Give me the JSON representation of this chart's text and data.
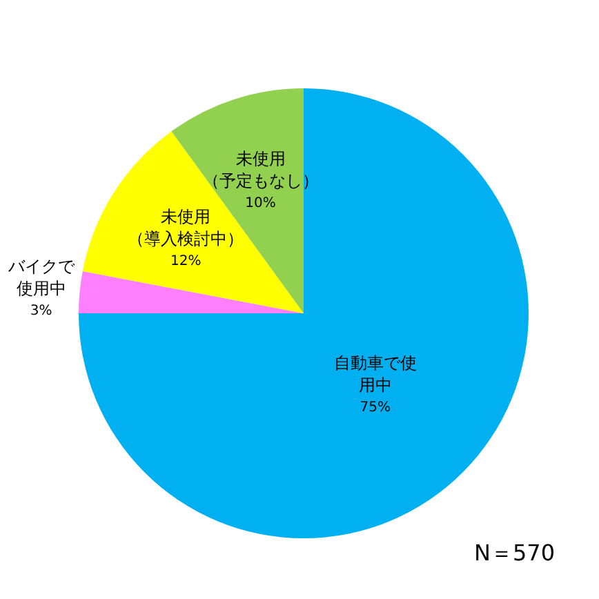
{
  "chart_data": {
    "type": "pie",
    "categories": [
      "自動車で使用中",
      "バイクで使用中",
      "未使用（導入検討中）",
      "未使用（予定もなし）"
    ],
    "values": [
      75,
      3,
      12,
      10
    ],
    "colors": [
      "#00b0f0",
      "#ff80ff",
      "#ffff00",
      "#92d050"
    ],
    "value_labels": [
      "75%",
      "3%",
      "12%",
      "10%"
    ],
    "annotations": [
      "N＝570"
    ]
  }
}
